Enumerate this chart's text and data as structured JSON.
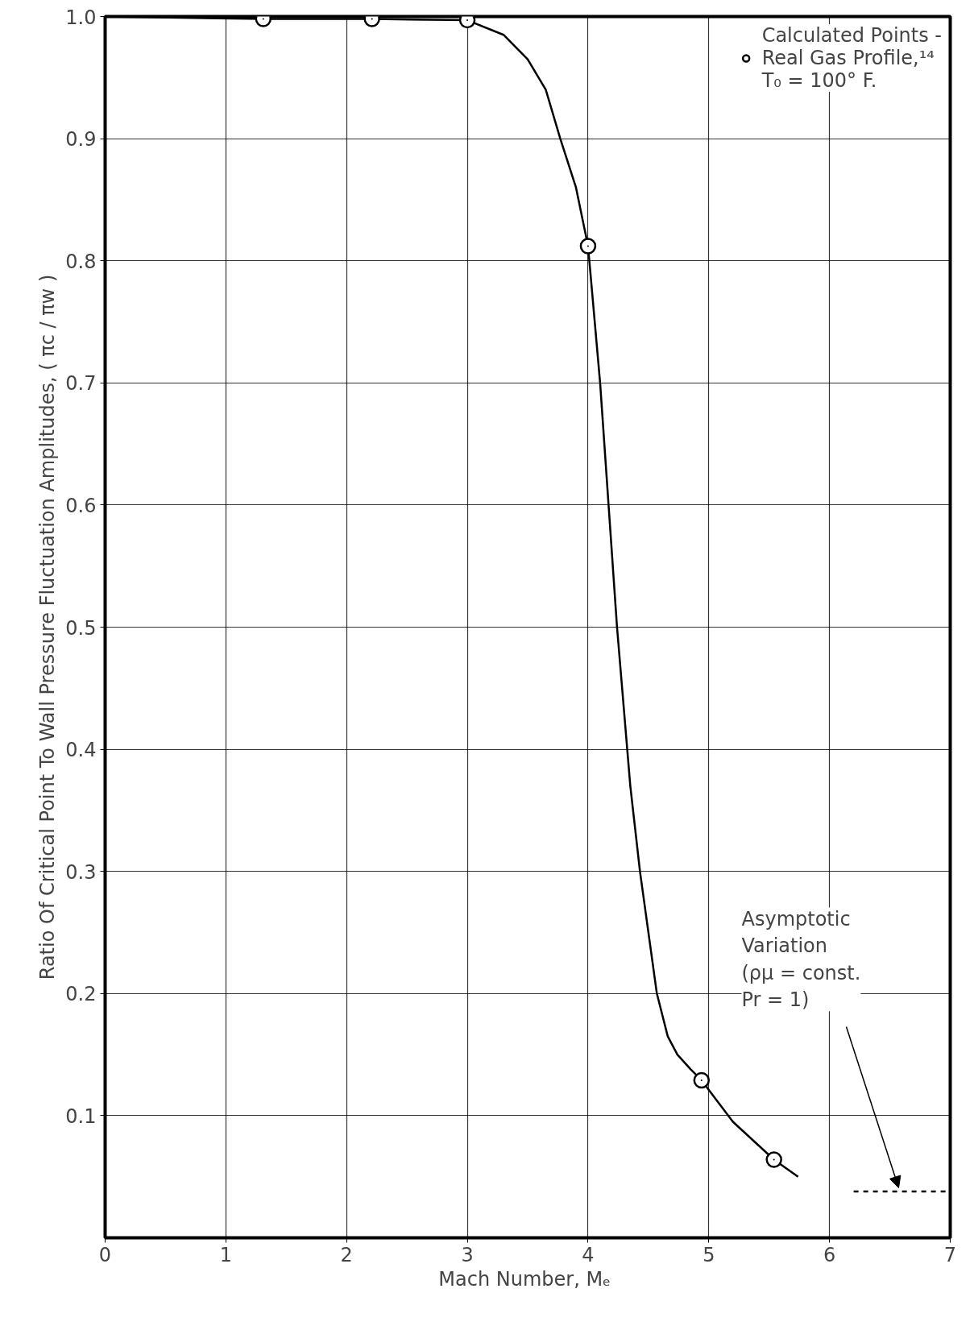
{
  "chart_data": {
    "type": "line",
    "xlabel": "Mach  Number, Mₑ",
    "ylabel": "Ratio Of Critical Point To Wall Pressure Fluctuation Amplitudes, ( πc / πw )",
    "xlim": [
      0,
      7
    ],
    "ylim": [
      0,
      1.0
    ],
    "xticks": [
      0,
      1,
      2,
      3,
      4,
      5,
      6,
      7
    ],
    "yticks": [
      0.1,
      0.2,
      0.3,
      0.4,
      0.5,
      0.6,
      0.7,
      0.8,
      0.9,
      {
        "value": 1.0,
        "label": "1.0"
      }
    ],
    "grid": true,
    "legend": "top right",
    "series": [
      {
        "color": "#000000",
        "line_style": "solid",
        "marker": "none",
        "x": [
          0,
          1.31,
          2.21,
          3.0,
          3.3,
          3.5,
          3.65,
          3.77,
          3.9,
          4.0,
          4.1,
          4.24,
          4.35,
          4.43,
          4.57,
          4.66,
          4.74,
          4.85,
          4.94,
          5.2,
          5.54,
          5.74
        ],
        "values": [
          1.0,
          0.998,
          0.998,
          0.997,
          0.985,
          0.965,
          0.94,
          0.9,
          0.86,
          0.812,
          0.7,
          0.5,
          0.37,
          0.3,
          0.2,
          0.165,
          0.15,
          0.138,
          0.129,
          0.095,
          0.064,
          0.05
        ]
      },
      {
        "type": "scatter",
        "name": "Calculated Points -\nReal Gas Profile,¹⁴\nT₀ = 100° F.",
        "color": "#000000",
        "marker": "circle",
        "x": [
          1.31,
          2.21,
          3.0,
          4.0,
          4.94,
          5.54
        ],
        "values": [
          0.998,
          0.998,
          0.997,
          0.812,
          0.129,
          0.064
        ]
      },
      {
        "type": "line",
        "color": "#000000",
        "line_style": "dashed",
        "marker": "none",
        "x": [
          6.2,
          7.0
        ],
        "values": [
          0.038,
          0.038
        ]
      }
    ],
    "annotations": [
      "Asymptotic\nVariation\n(ρμ = const.\nPr = 1)"
    ]
  }
}
